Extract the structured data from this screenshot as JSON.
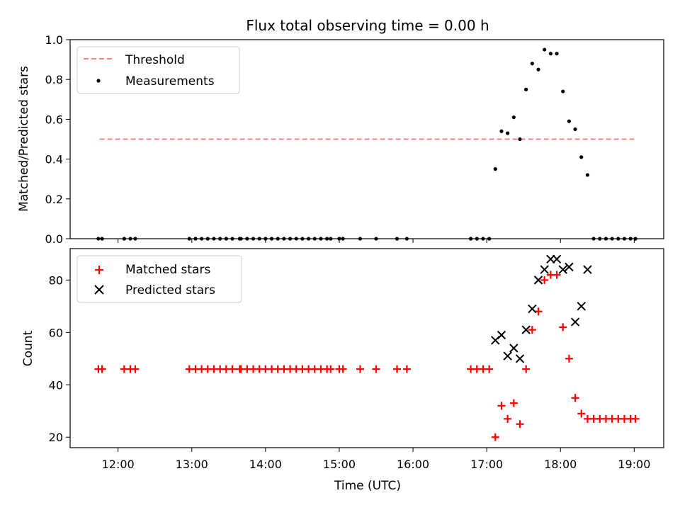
{
  "chart_data": [
    {
      "type": "scatter",
      "title": "Flux total observing time = 0.00 h",
      "xlabel": "",
      "ylabel": "Matched/Predicted stars",
      "xlim": [
        "11:21",
        "19:24"
      ],
      "ylim": [
        0,
        1.0
      ],
      "yticks": [
        0.0,
        0.2,
        0.4,
        0.6,
        0.8,
        1.0
      ],
      "ytick_labels": [
        "0.0",
        "0.2",
        "0.4",
        "0.6",
        "0.8",
        "1.0"
      ],
      "grid": false,
      "legend": {
        "placement": "upper-left",
        "entries": [
          "Threshold",
          "Measurements"
        ]
      },
      "colors": {
        "threshold": "#ff7f7f",
        "measurements": "#000000"
      },
      "threshold": {
        "name": "Threshold",
        "y": 0.5,
        "x_range": [
          "11:45",
          "19:00"
        ]
      },
      "series": [
        {
          "name": "Measurements",
          "x": [
            "11:44",
            "11:47",
            "12:05",
            "12:10",
            "12:14",
            "12:58",
            "13:03",
            "13:08",
            "13:13",
            "13:18",
            "13:23",
            "13:28",
            "13:33",
            "13:39",
            "13:40",
            "13:45",
            "13:50",
            "13:55",
            "14:00",
            "14:05",
            "14:10",
            "14:15",
            "14:20",
            "14:25",
            "14:30",
            "14:35",
            "14:40",
            "14:45",
            "14:50",
            "14:53",
            "15:00",
            "15:03",
            "15:17",
            "15:30",
            "15:47",
            "15:55",
            "16:47",
            "16:52",
            "16:57",
            "17:02",
            "17:07",
            "17:12",
            "17:17",
            "17:22",
            "17:27",
            "17:32",
            "17:37",
            "17:42",
            "17:47",
            "17:52",
            "17:57",
            "18:02",
            "18:07",
            "18:12",
            "18:17",
            "18:22",
            "18:27",
            "18:32",
            "18:37",
            "18:42",
            "18:47",
            "18:52",
            "18:57",
            "19:01"
          ],
          "y": [
            0,
            0,
            0,
            0,
            0,
            0,
            0,
            0,
            0,
            0,
            0,
            0,
            0,
            0,
            0,
            0,
            0,
            0,
            0,
            0,
            0,
            0,
            0,
            0,
            0,
            0,
            0,
            0,
            0,
            0,
            0,
            0,
            0,
            0,
            0,
            0,
            0,
            0,
            0,
            0,
            0.35,
            0.54,
            0.53,
            0.61,
            0.5,
            0.75,
            0.88,
            0.85,
            0.95,
            0.93,
            0.93,
            0.74,
            0.59,
            0.55,
            0.41,
            0.32,
            0,
            0,
            0,
            0,
            0,
            0,
            0,
            0
          ]
        }
      ]
    },
    {
      "type": "scatter",
      "title": "",
      "xlabel": "Time (UTC)",
      "ylabel": "Count",
      "xlim": [
        "11:21",
        "19:24"
      ],
      "ylim": [
        16,
        92
      ],
      "yticks": [
        20,
        40,
        60,
        80
      ],
      "ytick_labels": [
        "20",
        "40",
        "60",
        "80"
      ],
      "xticks": [
        "12:00",
        "13:00",
        "14:00",
        "15:00",
        "16:00",
        "17:00",
        "18:00",
        "19:00"
      ],
      "grid": false,
      "legend": {
        "placement": "upper-left",
        "entries": [
          "Matched stars",
          "Predicted stars"
        ]
      },
      "colors": {
        "matched": "#ff0000",
        "predicted": "#000000"
      },
      "series": [
        {
          "name": "Matched stars",
          "marker": "plus",
          "x": [
            "11:44",
            "11:47",
            "12:05",
            "12:10",
            "12:14",
            "12:58",
            "13:03",
            "13:08",
            "13:13",
            "13:18",
            "13:23",
            "13:28",
            "13:33",
            "13:39",
            "13:40",
            "13:45",
            "13:50",
            "13:55",
            "14:00",
            "14:05",
            "14:10",
            "14:15",
            "14:20",
            "14:25",
            "14:30",
            "14:35",
            "14:40",
            "14:45",
            "14:50",
            "14:53",
            "15:00",
            "15:03",
            "15:17",
            "15:30",
            "15:47",
            "15:55",
            "16:47",
            "16:52",
            "16:57",
            "17:02",
            "17:07",
            "17:12",
            "17:17",
            "17:22",
            "17:27",
            "17:32",
            "17:37",
            "17:42",
            "17:47",
            "17:52",
            "17:57",
            "18:02",
            "18:07",
            "18:12",
            "18:17",
            "18:22",
            "18:27",
            "18:32",
            "18:37",
            "18:42",
            "18:47",
            "18:52",
            "18:57",
            "19:01"
          ],
          "y": [
            46,
            46,
            46,
            46,
            46,
            46,
            46,
            46,
            46,
            46,
            46,
            46,
            46,
            46,
            46,
            46,
            46,
            46,
            46,
            46,
            46,
            46,
            46,
            46,
            46,
            46,
            46,
            46,
            46,
            46,
            46,
            46,
            46,
            46,
            46,
            46,
            46,
            46,
            46,
            46,
            20,
            32,
            27,
            33,
            25,
            46,
            61,
            68,
            80,
            82,
            82,
            62,
            50,
            35,
            29,
            27,
            27,
            27,
            27,
            27,
            27,
            27,
            27,
            27
          ]
        },
        {
          "name": "Predicted stars",
          "marker": "x",
          "x": [
            "17:07",
            "17:12",
            "17:17",
            "17:22",
            "17:27",
            "17:32",
            "17:37",
            "17:42",
            "17:47",
            "17:52",
            "17:57",
            "18:02",
            "18:07",
            "18:12",
            "18:17",
            "18:22"
          ],
          "y": [
            57,
            59,
            51,
            54,
            50,
            61,
            69,
            80,
            84,
            88,
            88,
            84,
            85,
            64,
            70,
            84
          ]
        }
      ]
    }
  ]
}
